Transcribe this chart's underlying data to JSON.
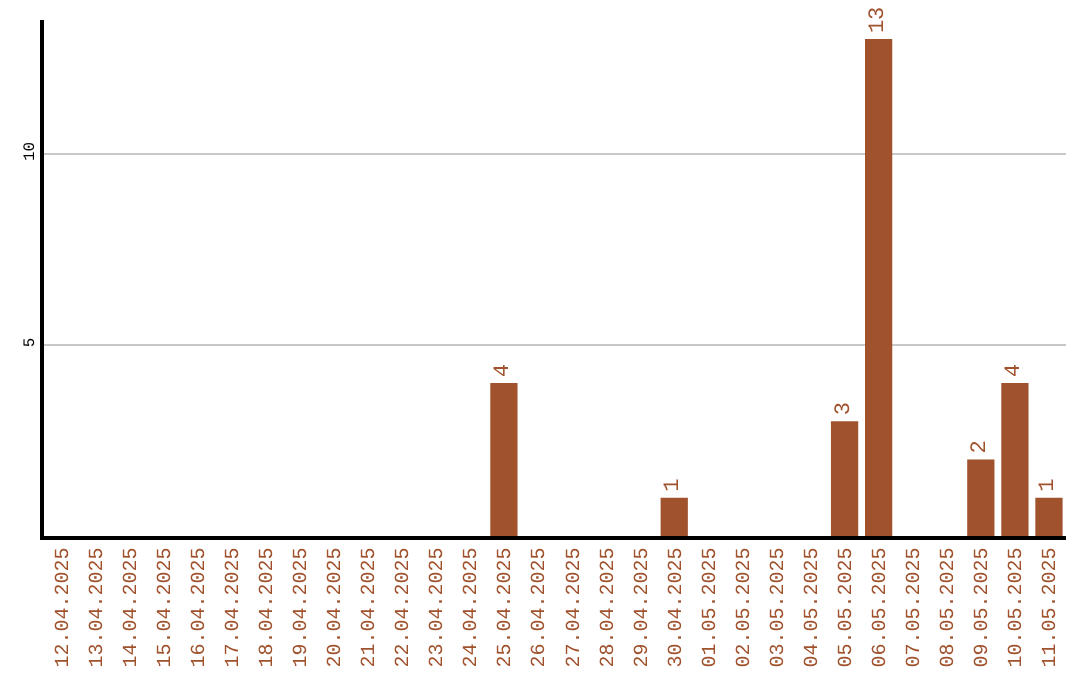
{
  "chart_data": {
    "type": "bar",
    "categories": [
      "12.04.2025",
      "13.04.2025",
      "14.04.2025",
      "15.04.2025",
      "16.04.2025",
      "17.04.2025",
      "18.04.2025",
      "19.04.2025",
      "20.04.2025",
      "21.04.2025",
      "22.04.2025",
      "23.04.2025",
      "24.04.2025",
      "25.04.2025",
      "26.04.2025",
      "27.04.2025",
      "28.04.2025",
      "29.04.2025",
      "30.04.2025",
      "01.05.2025",
      "02.05.2025",
      "03.05.2025",
      "04.05.2025",
      "05.05.2025",
      "06.05.2025",
      "07.05.2025",
      "08.05.2025",
      "09.05.2025",
      "10.05.2025",
      "11.05.2025"
    ],
    "values": [
      0,
      0,
      0,
      0,
      0,
      0,
      0,
      0,
      0,
      0,
      0,
      0,
      0,
      4,
      0,
      0,
      0,
      0,
      1,
      0,
      0,
      0,
      0,
      3,
      13,
      0,
      0,
      2,
      4,
      1
    ],
    "value_labels": [
      null,
      null,
      null,
      null,
      null,
      null,
      null,
      null,
      null,
      null,
      null,
      null,
      null,
      "4",
      null,
      null,
      null,
      null,
      "1",
      null,
      null,
      null,
      null,
      "3",
      "13",
      null,
      null,
      "2",
      "4",
      "1"
    ],
    "color": "#a0522d",
    "ylim": [
      0,
      13.5
    ],
    "yticks": [
      5,
      10
    ],
    "grid": "y",
    "legend": false
  }
}
